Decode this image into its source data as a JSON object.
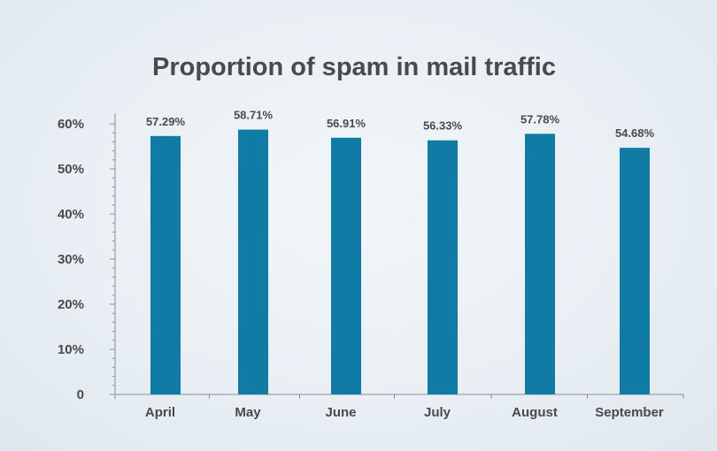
{
  "chart_data": {
    "type": "bar",
    "title": "Proportion of spam in mail traffic",
    "xlabel": "",
    "ylabel": "",
    "categories": [
      "April",
      "May",
      "June",
      "July",
      "August",
      "September"
    ],
    "values": [
      57.29,
      58.71,
      56.91,
      56.33,
      57.78,
      54.68
    ],
    "value_labels": [
      "57.29%",
      "58.71%",
      "56.91%",
      "56.33%",
      "57.78%",
      "54.68%"
    ],
    "ylim": [
      0,
      60
    ],
    "yticks": [
      0,
      10,
      20,
      30,
      40,
      50,
      60
    ],
    "ytick_labels": [
      "0",
      "10%",
      "20%",
      "30%",
      "40%",
      "50%",
      "60%"
    ],
    "grid": false,
    "legend": "none",
    "bar_color": "#107ca5",
    "axis_color": "#8a8f94"
  }
}
